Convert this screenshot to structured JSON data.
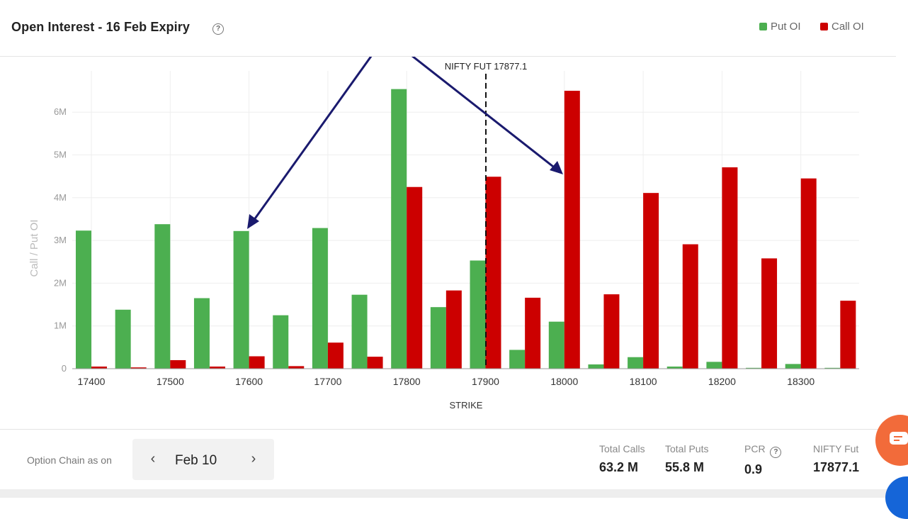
{
  "header": {
    "title": "Open Interest - 16 Feb Expiry",
    "legend": [
      {
        "label": "Put OI",
        "color": "#4caf50"
      },
      {
        "label": "Call OI",
        "color": "#cc0000"
      }
    ]
  },
  "chart_data": {
    "type": "bar",
    "xlabel": "STRIKE",
    "ylabel": "Call / Put OI",
    "ylim": [
      0,
      7000000
    ],
    "yticks": [
      "0",
      "1M",
      "2M",
      "3M",
      "4M",
      "5M",
      "6M"
    ],
    "x_tick_labels": [
      "17400",
      "17500",
      "17600",
      "17700",
      "17800",
      "17900",
      "18000",
      "18100",
      "18200",
      "18300"
    ],
    "categories": [
      17400,
      17450,
      17500,
      17550,
      17600,
      17650,
      17700,
      17750,
      17800,
      17850,
      17900,
      17950,
      18000,
      18050,
      18100,
      18150,
      18200,
      18250,
      18300,
      18350
    ],
    "series": [
      {
        "name": "Put OI",
        "color": "#4caf50",
        "values": [
          3230000,
          1380000,
          3380000,
          1650000,
          3220000,
          1250000,
          3290000,
          1730000,
          6540000,
          1440000,
          2530000,
          440000,
          1100000,
          100000,
          270000,
          50000,
          160000,
          20000,
          110000,
          20000
        ]
      },
      {
        "name": "Call OI",
        "color": "#cc0000",
        "values": [
          50000,
          30000,
          200000,
          50000,
          290000,
          60000,
          610000,
          280000,
          4250000,
          1830000,
          4490000,
          1660000,
          6500000,
          1740000,
          4110000,
          2910000,
          4710000,
          2580000,
          4450000,
          1590000
        ]
      }
    ],
    "reference_line": {
      "label": "NIFTY FUT 17877.1",
      "value": 17900
    },
    "grid": true
  },
  "footer": {
    "option_chain_label": "Option Chain as on",
    "date": "Feb 10",
    "prev_icon": "chevron-left-icon",
    "next_icon": "chevron-right-icon",
    "stats": [
      {
        "label": "Total Calls",
        "value": "63.2 M"
      },
      {
        "label": "Total Puts",
        "value": "55.8 M"
      },
      {
        "label": "PCR",
        "value": "0.9"
      },
      {
        "label": "NIFTY Fut",
        "value": "17877.1"
      }
    ]
  },
  "icons": {
    "help": "?",
    "prev": "‹",
    "next": "›"
  }
}
